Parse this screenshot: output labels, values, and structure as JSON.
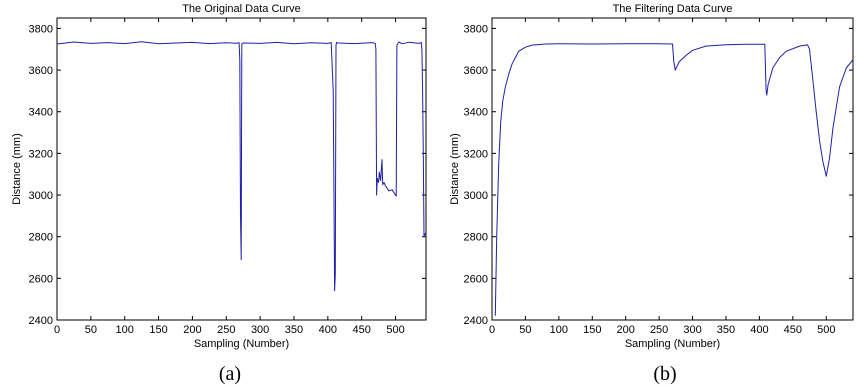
{
  "panels": [
    {
      "caption": "(a)",
      "chart_data": {
        "type": "line",
        "title": "The Original Data Curve",
        "xlabel": "Sampling (Number)",
        "ylabel": "Distance (mm)",
        "xlim": [
          0,
          545
        ],
        "ylim": [
          2400,
          3850
        ],
        "xticks": [
          0,
          50,
          100,
          150,
          200,
          250,
          300,
          350,
          400,
          450,
          500
        ],
        "yticks": [
          2400,
          2600,
          2800,
          3000,
          3200,
          3400,
          3600,
          3800
        ],
        "grid": false,
        "line_color": "#1f1fa8",
        "series": [
          {
            "x": [
              0,
              25,
              50,
              75,
              100,
              125,
              150,
              175,
              200,
              225,
              250,
              265,
              269,
              270,
              271,
              272,
              273,
              275,
              300,
              325,
              350,
              375,
              400,
              405,
              408,
              409,
              410,
              411,
              412,
              413,
              415,
              440,
              465,
              470,
              471,
              472,
              473,
              475,
              476,
              478,
              480,
              481,
              483,
              485,
              490,
              495,
              500,
              501,
              502,
              505,
              510,
              520,
              530,
              535,
              538,
              539,
              540,
              541,
              542,
              543,
              545
            ],
            "y": [
              3725,
              3735,
              3728,
              3732,
              3727,
              3736,
              3726,
              3730,
              3733,
              3727,
              3731,
              3729,
              3732,
              3650,
              2900,
              2690,
              3725,
              3730,
              3728,
              3733,
              3726,
              3731,
              3728,
              3732,
              3500,
              3050,
              2540,
              2620,
              3720,
              3733,
              3730,
              3727,
              3732,
              3728,
              3700,
              3000,
              3080,
              3060,
              3110,
              3070,
              3170,
              3050,
              3060,
              3045,
              3020,
              3025,
              3000,
              2995,
              3720,
              3735,
              3726,
              3734,
              3730,
              3728,
              3733,
              3700,
              3500,
              3200,
              2800,
              2810,
              2820
            ]
          }
        ]
      }
    },
    {
      "caption": "(b)",
      "chart_data": {
        "type": "line",
        "title": "The Filtering Data Curve",
        "xlabel": "Sampling (Number)",
        "ylabel": "Distance (mm)",
        "xlim": [
          0,
          540
        ],
        "ylim": [
          2400,
          3850
        ],
        "xticks": [
          0,
          50,
          100,
          150,
          200,
          250,
          300,
          350,
          400,
          450,
          500
        ],
        "yticks": [
          2400,
          2600,
          2800,
          3000,
          3200,
          3400,
          3600,
          3800
        ],
        "grid": false,
        "line_color": "#1f1fa8",
        "series": [
          {
            "x": [
              5,
              7,
              10,
              13,
              16,
              20,
              25,
              30,
              35,
              40,
              50,
              60,
              80,
              100,
              150,
              200,
              250,
              270,
              272,
              274,
              280,
              290,
              300,
              320,
              350,
              380,
              408,
              410,
              411,
              413,
              420,
              430,
              440,
              460,
              472,
              475,
              480,
              485,
              490,
              495,
              500,
              505,
              510,
              520,
              530,
              540
            ],
            "y": [
              2420,
              2800,
              3150,
              3350,
              3450,
              3520,
              3580,
              3630,
              3660,
              3690,
              3710,
              3720,
              3725,
              3726,
              3725,
              3726,
              3726,
              3725,
              3640,
              3600,
              3640,
              3670,
              3695,
              3715,
              3722,
              3724,
              3724,
              3500,
              3480,
              3530,
              3610,
              3660,
              3690,
              3715,
              3722,
              3700,
              3550,
              3400,
              3260,
              3160,
              3090,
              3180,
              3320,
              3520,
              3610,
              3650
            ]
          }
        ]
      }
    }
  ]
}
